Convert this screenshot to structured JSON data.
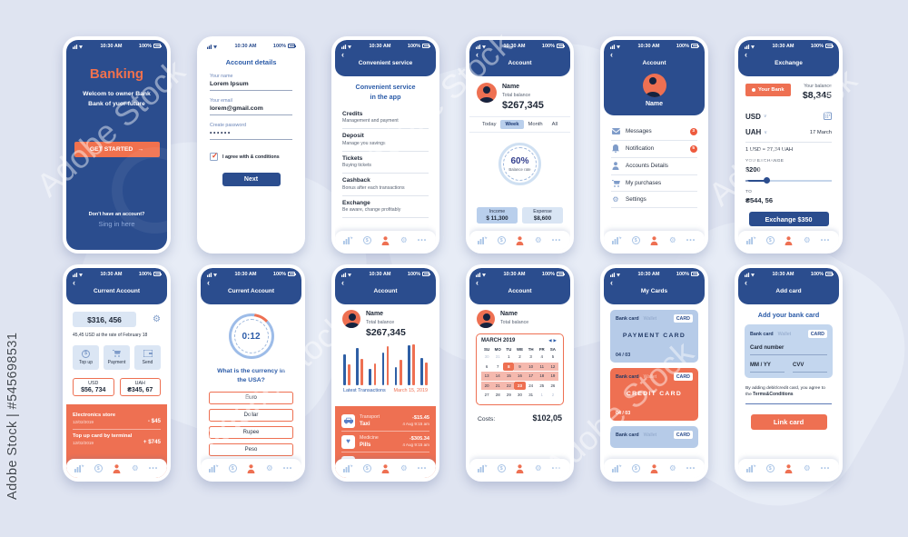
{
  "status": {
    "time": "10:30 AM",
    "battery": "100%"
  },
  "icons": {
    "gear": "⚙",
    "dots": "•••",
    "dollar": "$",
    "back": "‹",
    "chevron_down": "∨",
    "arrow_right": "→",
    "cal_prev": "◀",
    "cal_next": "▶",
    "heart": "♥",
    "bullet": "●"
  },
  "watermark": {
    "side": "Adobe Stock | #545698531",
    "ghost": "Adobe Stock"
  },
  "screens": {
    "s1": {
      "title": "Banking",
      "subtitle1": "Welcom to owner Bank",
      "subtitle2": "Bank of yuor future",
      "cta": "GET STARTED",
      "footer1": "Don't have an account?",
      "footer2": "Sing in here"
    },
    "s2": {
      "title": "Account details",
      "name_label": "Your name",
      "name_value": "Lorem Ipsum",
      "email_label": "Your email",
      "email_value": "lorem@gmail.com",
      "password_label": "Create password",
      "password_dots": "••••••",
      "agree": "I agree with & conditions",
      "next": "Next"
    },
    "s3": {
      "header": "Convenient service",
      "title1": "Convenient service",
      "title2": "in the app",
      "items": [
        {
          "t": "Credits",
          "d": "Management and payment"
        },
        {
          "t": "Deposit",
          "d": "Manage you savings"
        },
        {
          "t": "Tickets",
          "d": "Buying tickets"
        },
        {
          "t": "Cashback",
          "d": "Bonus after each transactions"
        },
        {
          "t": "Exchange",
          "d": "Be aware, change profitably"
        }
      ]
    },
    "s4": {
      "header": "Account",
      "name": "Name",
      "balance_label": "Total balance",
      "balance": "$267,345",
      "tabs": [
        "Today",
        "Week",
        "Month",
        "All"
      ],
      "active_tab": 1,
      "rate": "60%",
      "rate_label": "Balance rate",
      "income_label": "Income",
      "income": "$ 11,300",
      "expense_label": "Expense",
      "expense": "$8,600"
    },
    "s5": {
      "header": "Account",
      "name": "Name",
      "menu": [
        {
          "icon": "envelope-icon",
          "label": "Messages",
          "badge": "3"
        },
        {
          "icon": "bell-icon",
          "label": "Notification",
          "badge": "5"
        },
        {
          "icon": "person-icon",
          "label": "Accounts Details",
          "badge": ""
        },
        {
          "icon": "cart-icon",
          "label": "My purchases",
          "badge": ""
        },
        {
          "icon": "gear-icon",
          "label": "Settings",
          "badge": ""
        }
      ]
    },
    "s6": {
      "header": "Exchange",
      "bank_btn": "Your Bank",
      "balance_label": "Your balance",
      "balance": "$8,345",
      "cur_from": "USD",
      "cur_to": "UAH",
      "date": "17 March",
      "rate": "1 USD = 27,34 UAH",
      "exchange_label": "YOU EXCHANGE",
      "exchange_value": "$200",
      "to_label": "TO",
      "to_value": "₴544, 56",
      "btn": "Exchange $350"
    },
    "s7": {
      "header": "Current Account",
      "amount": "$316, 456",
      "note": "45,45 USD at the rate of February 18",
      "actions": [
        {
          "icon": "dollar-icon",
          "label": "Top up"
        },
        {
          "icon": "cart-icon",
          "label": "Payment"
        },
        {
          "icon": "wallet-icon",
          "label": "Send"
        }
      ],
      "usd_label": "USD",
      "usd_value": "$56, 734",
      "uah_label": "UAH",
      "uah_value": "₴345, 67",
      "transactions": [
        {
          "title": "Electronics store",
          "date": "12/02/2019",
          "value": "- $45"
        },
        {
          "title": "Top up card by terminal",
          "date": "12/02/2019",
          "value": "+ $745"
        }
      ]
    },
    "s8": {
      "header": "Current Account",
      "timer": "0:12",
      "question1": "What is the currency in",
      "question2": "the USA?",
      "options": [
        "Euro",
        "Dollar",
        "Rupee",
        "Peso"
      ]
    },
    "s9": {
      "header": "Account",
      "name": "Name",
      "balance_label": "Total balance",
      "balance": "$267,345",
      "chart": {
        "type": "bar",
        "pairs": [
          [
            34,
            23
          ],
          [
            41,
            29
          ],
          [
            18,
            24
          ],
          [
            36,
            43
          ],
          [
            20,
            28
          ],
          [
            44,
            45
          ],
          [
            30,
            25
          ]
        ]
      },
      "left_label": "Latest Transactions",
      "right_label": "March 15, 2019",
      "transactions": [
        {
          "icon": "car-icon",
          "category": "Transport",
          "name": "Taxi",
          "amount": "-$15.45",
          "date": "4 Aug  9:15 am"
        },
        {
          "icon": "heart-icon",
          "category": "Medicine",
          "name": "Pills",
          "amount": "-$305.34",
          "date": "4 Aug  9:15 am"
        }
      ]
    },
    "s10": {
      "header": "Account",
      "name": "Name",
      "balance_label": "Total balance",
      "month": "MARCH 2019",
      "dow": [
        "SU",
        "MO",
        "TU",
        "WE",
        "TH",
        "FR",
        "SA"
      ],
      "weeks": [
        [
          {
            "d": "30",
            "m": 1
          },
          {
            "d": "31",
            "m": 1
          },
          {
            "d": "1"
          },
          {
            "d": "2"
          },
          {
            "d": "3"
          },
          {
            "d": "4"
          },
          {
            "d": "5"
          }
        ],
        [
          {
            "d": "6"
          },
          {
            "d": "7"
          },
          {
            "d": "8",
            "s": 1
          },
          {
            "d": "9",
            "h": 1
          },
          {
            "d": "10",
            "h": 1
          },
          {
            "d": "11",
            "h": 1
          },
          {
            "d": "12",
            "h": 1
          }
        ],
        [
          {
            "d": "13",
            "h": 1
          },
          {
            "d": "14",
            "h": 1
          },
          {
            "d": "15",
            "h": 1
          },
          {
            "d": "16",
            "h": 1
          },
          {
            "d": "17",
            "h": 1
          },
          {
            "d": "18",
            "h": 1
          },
          {
            "d": "19",
            "h": 1
          }
        ],
        [
          {
            "d": "20",
            "h": 1
          },
          {
            "d": "21",
            "h": 1
          },
          {
            "d": "22",
            "h": 1
          },
          {
            "d": "23",
            "s": 1
          },
          {
            "d": "24"
          },
          {
            "d": "25"
          },
          {
            "d": "26"
          }
        ],
        [
          {
            "d": "27"
          },
          {
            "d": "28"
          },
          {
            "d": "29"
          },
          {
            "d": "30"
          },
          {
            "d": "31"
          },
          {
            "d": "1",
            "m": 1
          },
          {
            "d": "2",
            "m": 1
          }
        ]
      ],
      "costs_label": "Costs:",
      "costs": "$102,05"
    },
    "s11": {
      "header": "My Cards",
      "tab1": "Bank card",
      "tab2": "Wallet",
      "chip": "CARD",
      "cards": [
        {
          "style": "lb",
          "title": "PAYMENT CARD",
          "num": "04 / 03"
        },
        {
          "style": "or",
          "title": "CREDIT CARD",
          "num": "04 / 03"
        },
        {
          "style": "lb cut",
          "title": "",
          "num": ""
        }
      ]
    },
    "s12": {
      "header": "Add card",
      "title": "Add your bank card",
      "tab1": "Bank card",
      "tab2": "Wallet",
      "chip": "CARD",
      "card_number": "Card number",
      "mm": "MM / YY",
      "cvv": "CVV",
      "terms1": "By adding debit/credit card, you agree to the",
      "terms2": "Terms&Conditions",
      "btn": "Link card"
    }
  }
}
